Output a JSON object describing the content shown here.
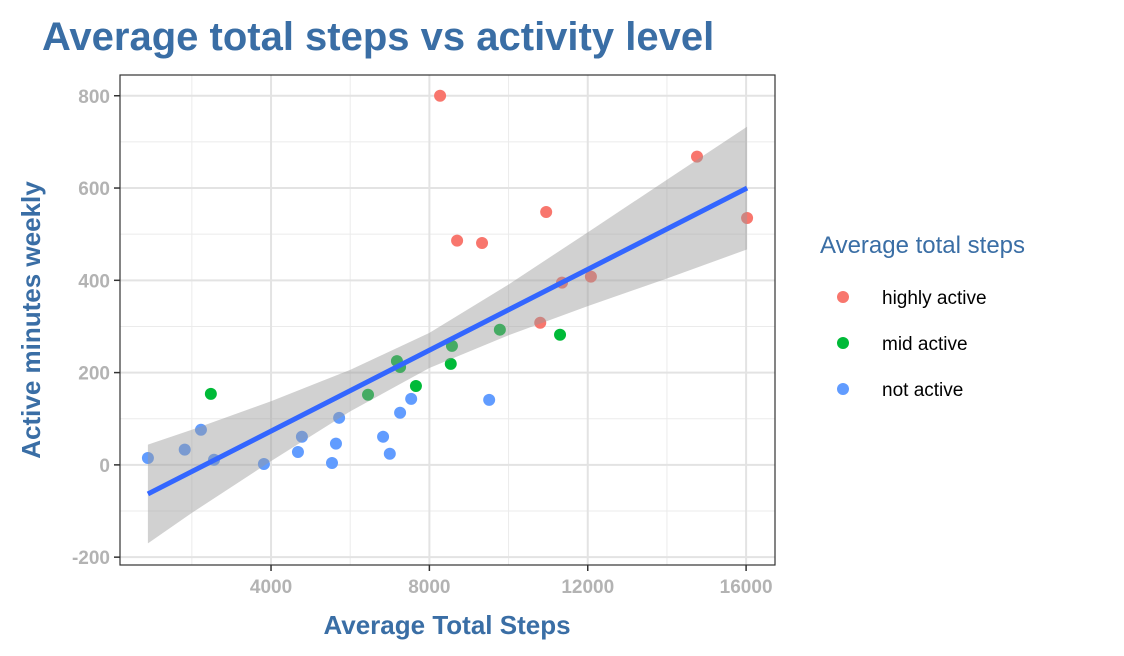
{
  "chart_data": {
    "type": "scatter",
    "title": "Average total steps vs activity level",
    "xlabel": "Average Total Steps",
    "ylabel": "Active minutes weekly",
    "xlim": [
      185,
      16730
    ],
    "ylim": [
      -217,
      845
    ],
    "xticks": [
      4000,
      8000,
      12000,
      16000
    ],
    "xtick_labels": [
      "4000",
      "8000",
      "12000",
      "16000"
    ],
    "yticks": [
      -200,
      0,
      200,
      400,
      600,
      800
    ],
    "ytick_labels": [
      "-200",
      "0",
      "200",
      "400",
      "600",
      "800"
    ],
    "grid": true,
    "legend": {
      "title": "Average total steps",
      "placement": "right"
    },
    "series": [
      {
        "name": "highly active",
        "color": "#F8766D",
        "points": [
          [
            8270,
            800
          ],
          [
            14760,
            668
          ],
          [
            10950,
            548
          ],
          [
            8700,
            486
          ],
          [
            9330,
            481
          ],
          [
            16025,
            535
          ],
          [
            11350,
            395
          ],
          [
            12080,
            408
          ],
          [
            10800,
            308
          ]
        ]
      },
      {
        "name": "mid active",
        "color": "#00BA38",
        "points": [
          [
            2480,
            154
          ],
          [
            7180,
            225
          ],
          [
            7260,
            212
          ],
          [
            7660,
            171
          ],
          [
            6450,
            152
          ],
          [
            8570,
            258
          ],
          [
            8540,
            219
          ],
          [
            9780,
            293
          ],
          [
            11300,
            282
          ]
        ]
      },
      {
        "name": "not active",
        "color": "#619CFF",
        "points": [
          [
            890,
            15
          ],
          [
            1820,
            33
          ],
          [
            2230,
            76
          ],
          [
            2560,
            11
          ],
          [
            3820,
            2
          ],
          [
            4680,
            28
          ],
          [
            4780,
            61
          ],
          [
            5640,
            46
          ],
          [
            5540,
            4
          ],
          [
            5720,
            102
          ],
          [
            6830,
            61
          ],
          [
            7000,
            24
          ],
          [
            7260,
            113
          ],
          [
            7540,
            143
          ],
          [
            9510,
            141
          ]
        ]
      }
    ],
    "regression": {
      "color": "#3366FF",
      "x": [
        890,
        16025
      ],
      "y": [
        -63,
        600
      ],
      "ribbon": {
        "x": [
          890,
          2000,
          4000,
          6000,
          8000,
          10000,
          12000,
          14000,
          16025
        ],
        "lower": [
          -170,
          -104,
          8,
          116,
          210,
          281,
          344,
          404,
          467
        ],
        "upper": [
          44,
          76,
          138,
          206,
          286,
          391,
          504,
          618,
          733
        ]
      }
    }
  }
}
